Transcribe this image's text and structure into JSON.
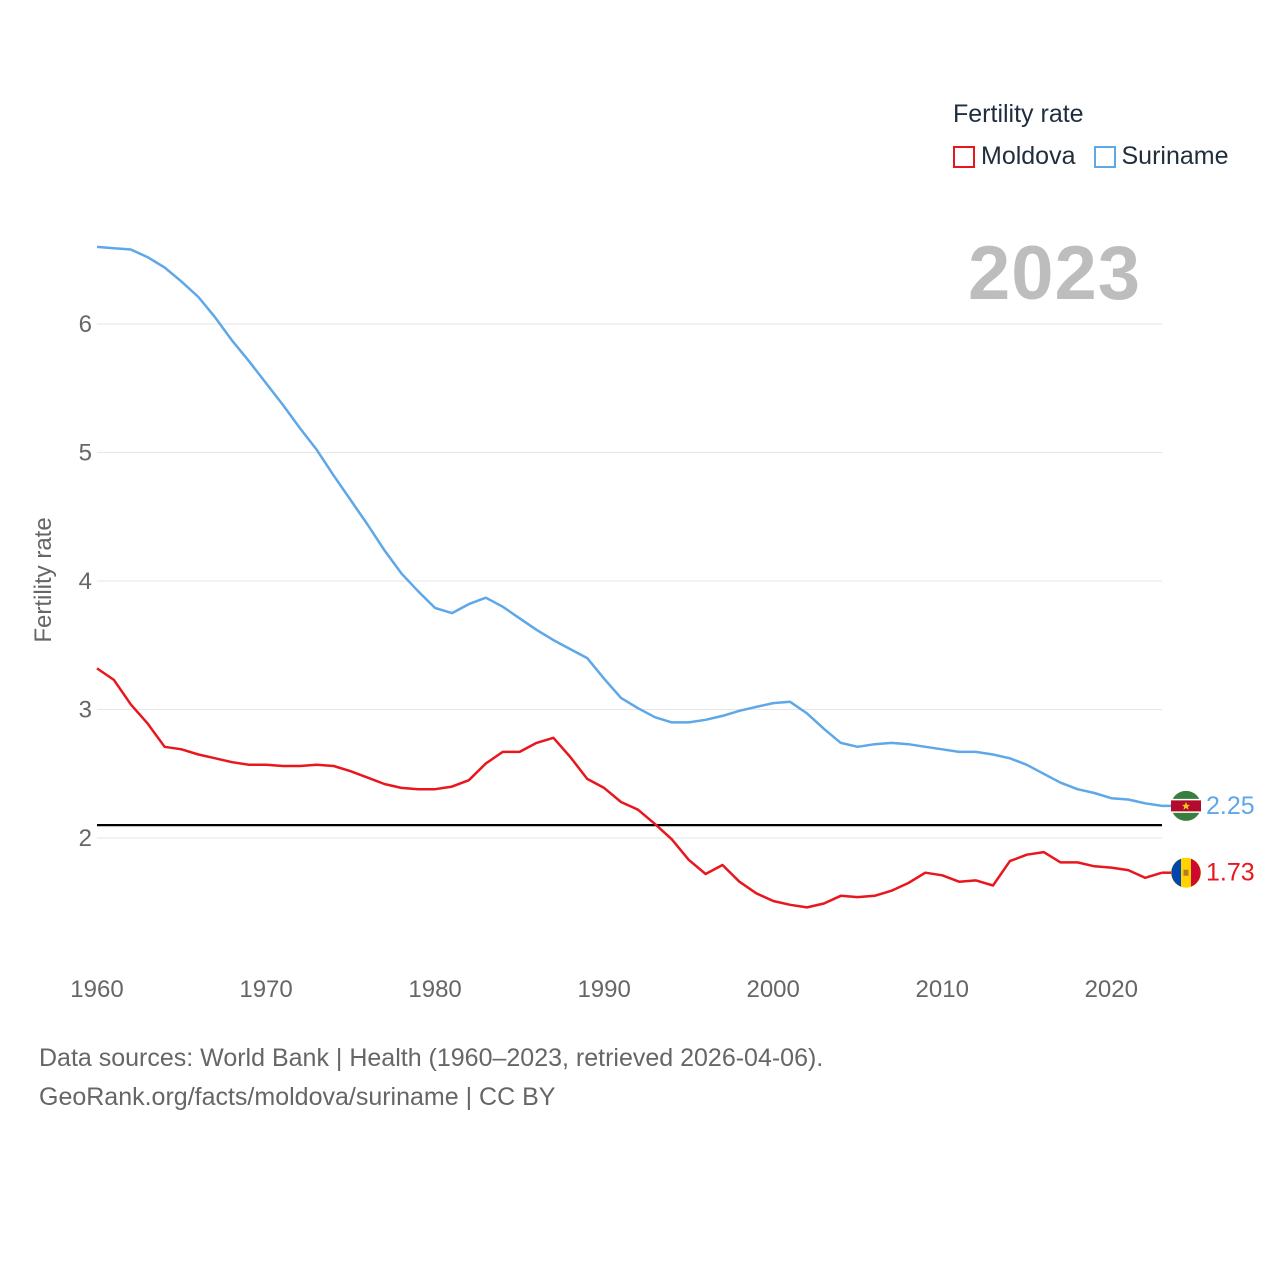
{
  "legend": {
    "title": "Fertility rate",
    "items": [
      {
        "name": "Moldova",
        "color": "#e8171e"
      },
      {
        "name": "Suriname",
        "color": "#5ea7e8"
      }
    ]
  },
  "year_label": "2023",
  "footer": {
    "line1": "Data sources: World Bank | Health (1960–2023, retrieved 2026-04-06).",
    "line2": "GeoRank.org/facts/moldova/suriname | CC BY"
  },
  "chart_data": {
    "type": "line",
    "title": "",
    "xlabel": "",
    "ylabel": "Fertility rate",
    "xlim": [
      1960,
      2023
    ],
    "ylim": [
      1.0,
      7.0
    ],
    "x_ticks": [
      1960,
      1970,
      1980,
      1990,
      2000,
      2010,
      2020
    ],
    "y_ticks": [
      2,
      3,
      4,
      5,
      6
    ],
    "reference_line": {
      "value": 2.1,
      "color": "#000000"
    },
    "x": [
      1960,
      1961,
      1962,
      1963,
      1964,
      1965,
      1966,
      1967,
      1968,
      1969,
      1970,
      1971,
      1972,
      1973,
      1974,
      1975,
      1976,
      1977,
      1978,
      1979,
      1980,
      1981,
      1982,
      1983,
      1984,
      1985,
      1986,
      1987,
      1988,
      1989,
      1990,
      1991,
      1992,
      1993,
      1994,
      1995,
      1996,
      1997,
      1998,
      1999,
      2000,
      2001,
      2002,
      2003,
      2004,
      2005,
      2006,
      2007,
      2008,
      2009,
      2010,
      2011,
      2012,
      2013,
      2014,
      2015,
      2016,
      2017,
      2018,
      2019,
      2020,
      2021,
      2022,
      2023
    ],
    "series": [
      {
        "name": "Suriname",
        "color": "#5ea7e8",
        "end_label": "2.25",
        "values": [
          6.6,
          6.59,
          6.58,
          6.52,
          6.44,
          6.33,
          6.21,
          6.05,
          5.87,
          5.71,
          5.54,
          5.37,
          5.19,
          5.02,
          4.82,
          4.63,
          4.44,
          4.24,
          4.06,
          3.92,
          3.79,
          3.75,
          3.82,
          3.87,
          3.8,
          3.71,
          3.62,
          3.54,
          3.47,
          3.4,
          3.24,
          3.09,
          3.01,
          2.94,
          2.9,
          2.9,
          2.92,
          2.95,
          2.99,
          3.02,
          3.05,
          3.06,
          2.97,
          2.85,
          2.74,
          2.71,
          2.73,
          2.74,
          2.73,
          2.71,
          2.69,
          2.67,
          2.67,
          2.65,
          2.62,
          2.57,
          2.5,
          2.43,
          2.38,
          2.35,
          2.31,
          2.3,
          2.27,
          2.25
        ]
      },
      {
        "name": "Moldova",
        "color": "#e8171e",
        "end_label": "1.73",
        "values": [
          3.32,
          3.23,
          3.04,
          2.89,
          2.71,
          2.69,
          2.65,
          2.62,
          2.59,
          2.57,
          2.57,
          2.56,
          2.56,
          2.57,
          2.56,
          2.52,
          2.47,
          2.42,
          2.39,
          2.38,
          2.38,
          2.4,
          2.45,
          2.58,
          2.67,
          2.67,
          2.74,
          2.78,
          2.63,
          2.46,
          2.39,
          2.28,
          2.22,
          2.11,
          1.99,
          1.83,
          1.72,
          1.79,
          1.66,
          1.57,
          1.51,
          1.48,
          1.46,
          1.49,
          1.55,
          1.54,
          1.55,
          1.59,
          1.65,
          1.73,
          1.71,
          1.66,
          1.67,
          1.63,
          1.82,
          1.87,
          1.89,
          1.81,
          1.81,
          1.78,
          1.77,
          1.75,
          1.69,
          1.73
        ]
      }
    ]
  }
}
